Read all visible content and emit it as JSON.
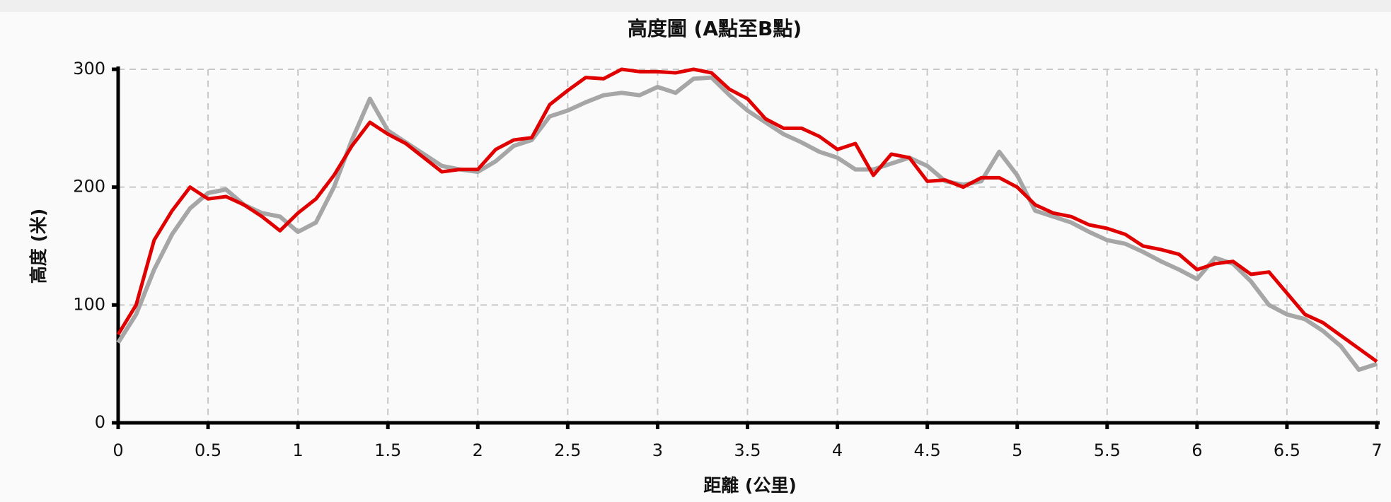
{
  "chart_data": {
    "type": "line",
    "title": "高度圖 (A點至B點)",
    "x_label": "距離 (公里)",
    "y_label": "高度 (米)",
    "x": [
      0,
      0.1,
      0.2,
      0.3,
      0.4,
      0.5,
      0.6,
      0.7,
      0.8,
      0.9,
      1,
      1.1,
      1.2,
      1.3,
      1.4,
      1.5,
      1.6,
      1.7,
      1.8,
      1.9,
      2,
      2.1,
      2.2,
      2.3,
      2.4,
      2.5,
      2.6,
      2.7,
      2.8,
      2.9,
      3,
      3.1,
      3.2,
      3.3,
      3.4,
      3.5,
      3.6,
      3.7,
      3.8,
      3.9,
      4,
      4.1,
      4.2,
      4.3,
      4.4,
      4.5,
      4.6,
      4.7,
      4.8,
      4.9,
      5,
      5.1,
      5.2,
      5.3,
      5.4,
      5.5,
      5.6,
      5.7,
      5.8,
      5.9,
      6,
      6.1,
      6.2,
      6.3,
      6.4,
      6.5,
      6.6,
      6.7,
      6.8,
      6.9,
      7
    ],
    "series": [
      {
        "color": "#a6a6a6",
        "values": [
          68,
          92,
          130,
          160,
          182,
          195,
          198,
          185,
          178,
          175,
          162,
          170,
          200,
          240,
          275,
          248,
          238,
          228,
          218,
          215,
          213,
          222,
          235,
          240,
          260,
          265,
          272,
          278,
          280,
          278,
          285,
          280,
          292,
          293,
          278,
          265,
          255,
          245,
          238,
          230,
          225,
          215,
          215,
          220,
          225,
          218,
          205,
          202,
          205,
          230,
          210,
          180,
          175,
          170,
          162,
          155,
          152,
          145,
          137,
          130,
          122,
          140,
          135,
          120,
          100,
          92,
          88,
          78,
          65,
          45,
          50
        ]
      },
      {
        "color": "#e00000",
        "values": [
          75,
          100,
          155,
          180,
          200,
          190,
          192,
          185,
          175,
          163,
          178,
          190,
          210,
          235,
          255,
          245,
          237,
          225,
          213,
          215,
          215,
          232,
          240,
          242,
          270,
          282,
          293,
          292,
          300,
          298,
          298,
          297,
          300,
          297,
          283,
          275,
          258,
          250,
          250,
          243,
          232,
          237,
          210,
          228,
          225,
          205,
          206,
          200,
          208,
          208,
          200,
          185,
          178,
          175,
          168,
          165,
          160,
          150,
          147,
          143,
          130,
          135,
          137,
          126,
          128,
          110,
          92,
          85,
          74,
          63,
          52
        ]
      }
    ],
    "xlim": [
      0,
      7
    ],
    "xticks": [
      0,
      0.5,
      1,
      1.5,
      2,
      2.5,
      3,
      3.5,
      4,
      4.5,
      5,
      5.5,
      6,
      6.5,
      7
    ],
    "ylim": [
      0,
      300
    ],
    "yticks": [
      0,
      100,
      200,
      300
    ],
    "grid": true
  }
}
